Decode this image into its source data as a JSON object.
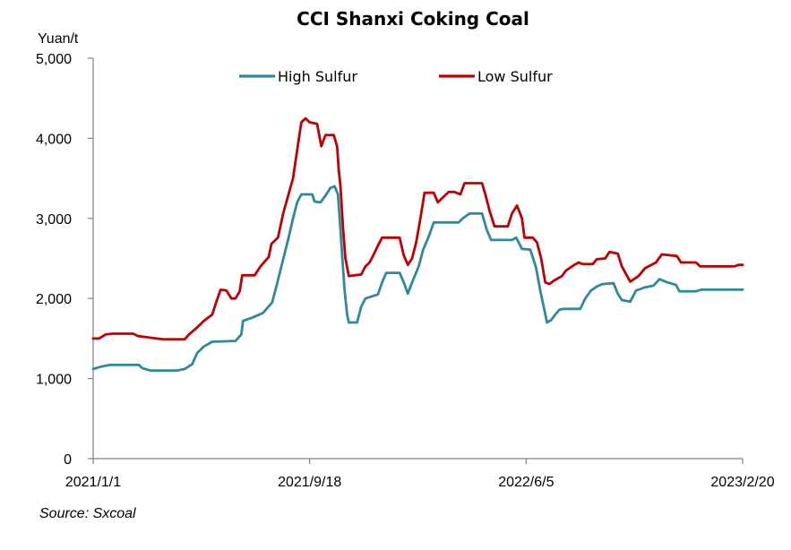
{
  "chart_data": {
    "type": "line",
    "title": "CCI Shanxi Coking Coal",
    "ylabel": "Yuan/t",
    "ylim": [
      0,
      5000
    ],
    "yticks": [
      0,
      1000,
      2000,
      3000,
      4000,
      5000
    ],
    "ytick_labels": [
      "0",
      "1,000",
      "2,000",
      "3,000",
      "4,000",
      "5,000"
    ],
    "xlim": [
      "2021-01-01",
      "2023-02-20"
    ],
    "xtick_labels": [
      "2021/1/1",
      "2021/9/18",
      "2022/6/5",
      "2023/2/20"
    ],
    "xtick_dates": [
      "2021-01-01",
      "2021-09-18",
      "2022-06-05",
      "2023-02-20"
    ],
    "grid": false,
    "legend": "top-center",
    "source": "Source: Sxcoal",
    "series": [
      {
        "name": "High Sulfur",
        "color": "#2e8a9a",
        "points": [
          [
            "2021-01-01",
            1120
          ],
          [
            "2021-01-11",
            1150
          ],
          [
            "2021-01-21",
            1170
          ],
          [
            "2021-02-11",
            1170
          ],
          [
            "2021-02-25",
            1170
          ],
          [
            "2021-03-01",
            1130
          ],
          [
            "2021-03-11",
            1100
          ],
          [
            "2021-04-11",
            1100
          ],
          [
            "2021-04-21",
            1120
          ],
          [
            "2021-04-30",
            1180
          ],
          [
            "2021-05-06",
            1320
          ],
          [
            "2021-05-14",
            1400
          ],
          [
            "2021-05-24",
            1460
          ],
          [
            "2021-06-21",
            1470
          ],
          [
            "2021-06-28",
            1550
          ],
          [
            "2021-06-30",
            1720
          ],
          [
            "2021-07-11",
            1760
          ],
          [
            "2021-07-24",
            1820
          ],
          [
            "2021-08-04",
            1950
          ],
          [
            "2021-08-09",
            2150
          ],
          [
            "2021-08-17",
            2480
          ],
          [
            "2021-08-24",
            2770
          ],
          [
            "2021-08-29",
            3000
          ],
          [
            "2021-09-03",
            3200
          ],
          [
            "2021-09-08",
            3300
          ],
          [
            "2021-09-21",
            3300
          ],
          [
            "2021-09-24",
            3210
          ],
          [
            "2021-10-01",
            3200
          ],
          [
            "2021-10-08",
            3300
          ],
          [
            "2021-10-13",
            3380
          ],
          [
            "2021-10-18",
            3400
          ],
          [
            "2021-10-22",
            3300
          ],
          [
            "2021-10-25",
            2850
          ],
          [
            "2021-10-28",
            2400
          ],
          [
            "2021-10-30",
            2100
          ],
          [
            "2021-11-02",
            1800
          ],
          [
            "2021-11-04",
            1700
          ],
          [
            "2021-11-14",
            1700
          ],
          [
            "2021-11-19",
            1900
          ],
          [
            "2021-11-24",
            2000
          ],
          [
            "2021-12-09",
            2050
          ],
          [
            "2021-12-14",
            2200
          ],
          [
            "2021-12-19",
            2320
          ],
          [
            "2022-01-04",
            2320
          ],
          [
            "2022-01-09",
            2200
          ],
          [
            "2022-01-14",
            2060
          ],
          [
            "2022-01-19",
            2200
          ],
          [
            "2022-01-27",
            2400
          ],
          [
            "2022-02-01",
            2600
          ],
          [
            "2022-02-09",
            2800
          ],
          [
            "2022-02-14",
            2950
          ],
          [
            "2022-03-16",
            2950
          ],
          [
            "2022-03-21",
            3000
          ],
          [
            "2022-03-29",
            3060
          ],
          [
            "2022-04-13",
            3060
          ],
          [
            "2022-04-19",
            2850
          ],
          [
            "2022-04-24",
            2730
          ],
          [
            "2022-05-19",
            2730
          ],
          [
            "2022-05-24",
            2760
          ],
          [
            "2022-05-31",
            2620
          ],
          [
            "2022-06-10",
            2610
          ],
          [
            "2022-06-17",
            2380
          ],
          [
            "2022-06-22",
            2100
          ],
          [
            "2022-06-27",
            1850
          ],
          [
            "2022-06-30",
            1700
          ],
          [
            "2022-07-05",
            1730
          ],
          [
            "2022-07-10",
            1800
          ],
          [
            "2022-07-15",
            1860
          ],
          [
            "2022-07-20",
            1870
          ],
          [
            "2022-08-09",
            1870
          ],
          [
            "2022-08-15",
            2000
          ],
          [
            "2022-08-22",
            2100
          ],
          [
            "2022-08-29",
            2150
          ],
          [
            "2022-09-05",
            2180
          ],
          [
            "2022-09-18",
            2190
          ],
          [
            "2022-09-23",
            2060
          ],
          [
            "2022-09-28",
            1980
          ],
          [
            "2022-10-08",
            1960
          ],
          [
            "2022-10-15",
            2100
          ],
          [
            "2022-10-26",
            2140
          ],
          [
            "2022-11-05",
            2160
          ],
          [
            "2022-11-12",
            2240
          ],
          [
            "2022-11-22",
            2200
          ],
          [
            "2022-12-02",
            2170
          ],
          [
            "2022-12-06",
            2090
          ],
          [
            "2022-12-26",
            2090
          ],
          [
            "2023-01-01",
            2110
          ],
          [
            "2023-02-20",
            2110
          ]
        ]
      },
      {
        "name": "Low Sulfur",
        "color": "#c00000",
        "points": [
          [
            "2021-01-01",
            1500
          ],
          [
            "2021-01-08",
            1500
          ],
          [
            "2021-01-16",
            1550
          ],
          [
            "2021-01-24",
            1560
          ],
          [
            "2021-02-18",
            1560
          ],
          [
            "2021-02-24",
            1530
          ],
          [
            "2021-03-11",
            1510
          ],
          [
            "2021-03-26",
            1490
          ],
          [
            "2021-04-21",
            1490
          ],
          [
            "2021-04-26",
            1550
          ],
          [
            "2021-05-06",
            1640
          ],
          [
            "2021-05-14",
            1720
          ],
          [
            "2021-05-24",
            1800
          ],
          [
            "2021-05-29",
            1960
          ],
          [
            "2021-06-03",
            2110
          ],
          [
            "2021-06-10",
            2100
          ],
          [
            "2021-06-16",
            2000
          ],
          [
            "2021-06-21",
            2000
          ],
          [
            "2021-06-26",
            2090
          ],
          [
            "2021-06-29",
            2290
          ],
          [
            "2021-07-14",
            2290
          ],
          [
            "2021-07-21",
            2400
          ],
          [
            "2021-07-31",
            2520
          ],
          [
            "2021-08-03",
            2680
          ],
          [
            "2021-08-11",
            2760
          ],
          [
            "2021-08-17",
            3050
          ],
          [
            "2021-08-21",
            3200
          ],
          [
            "2021-08-29",
            3500
          ],
          [
            "2021-09-03",
            3850
          ],
          [
            "2021-09-08",
            4200
          ],
          [
            "2021-09-13",
            4250
          ],
          [
            "2021-09-18",
            4200
          ],
          [
            "2021-09-27",
            4180
          ],
          [
            "2021-10-02",
            3900
          ],
          [
            "2021-10-07",
            4040
          ],
          [
            "2021-10-17",
            4040
          ],
          [
            "2021-10-21",
            3900
          ],
          [
            "2021-10-23",
            3600
          ],
          [
            "2021-10-25",
            3400
          ],
          [
            "2021-10-28",
            2900
          ],
          [
            "2021-10-31",
            2500
          ],
          [
            "2021-11-04",
            2280
          ],
          [
            "2021-11-19",
            2300
          ],
          [
            "2021-11-24",
            2400
          ],
          [
            "2021-11-29",
            2450
          ],
          [
            "2021-12-04",
            2550
          ],
          [
            "2021-12-09",
            2660
          ],
          [
            "2021-12-14",
            2760
          ],
          [
            "2022-01-04",
            2760
          ],
          [
            "2022-01-09",
            2540
          ],
          [
            "2022-01-14",
            2420
          ],
          [
            "2022-01-19",
            2500
          ],
          [
            "2022-01-24",
            2700
          ],
          [
            "2022-01-29",
            3000
          ],
          [
            "2022-02-03",
            3320
          ],
          [
            "2022-02-14",
            3320
          ],
          [
            "2022-02-19",
            3200
          ],
          [
            "2022-03-04",
            3330
          ],
          [
            "2022-03-11",
            3330
          ],
          [
            "2022-03-18",
            3300
          ],
          [
            "2022-03-23",
            3440
          ],
          [
            "2022-04-13",
            3440
          ],
          [
            "2022-04-17",
            3300
          ],
          [
            "2022-04-22",
            3100
          ],
          [
            "2022-04-28",
            2900
          ],
          [
            "2022-05-14",
            2900
          ],
          [
            "2022-05-19",
            3060
          ],
          [
            "2022-05-25",
            3160
          ],
          [
            "2022-05-31",
            3000
          ],
          [
            "2022-06-03",
            2760
          ],
          [
            "2022-06-13",
            2760
          ],
          [
            "2022-06-18",
            2700
          ],
          [
            "2022-06-23",
            2500
          ],
          [
            "2022-06-28",
            2200
          ],
          [
            "2022-07-03",
            2180
          ],
          [
            "2022-07-08",
            2220
          ],
          [
            "2022-07-18",
            2280
          ],
          [
            "2022-07-23",
            2350
          ],
          [
            "2022-08-02",
            2420
          ],
          [
            "2022-08-07",
            2450
          ],
          [
            "2022-08-12",
            2430
          ],
          [
            "2022-08-24",
            2430
          ],
          [
            "2022-08-29",
            2490
          ],
          [
            "2022-09-08",
            2500
          ],
          [
            "2022-09-13",
            2580
          ],
          [
            "2022-09-23",
            2560
          ],
          [
            "2022-09-28",
            2400
          ],
          [
            "2022-10-08",
            2210
          ],
          [
            "2022-10-18",
            2280
          ],
          [
            "2022-10-26",
            2380
          ],
          [
            "2022-11-08",
            2450
          ],
          [
            "2022-11-15",
            2550
          ],
          [
            "2022-12-03",
            2530
          ],
          [
            "2022-12-08",
            2450
          ],
          [
            "2022-12-26",
            2450
          ],
          [
            "2022-12-31",
            2400
          ],
          [
            "2023-02-10",
            2400
          ],
          [
            "2023-02-15",
            2420
          ],
          [
            "2023-02-20",
            2420
          ]
        ]
      }
    ]
  }
}
